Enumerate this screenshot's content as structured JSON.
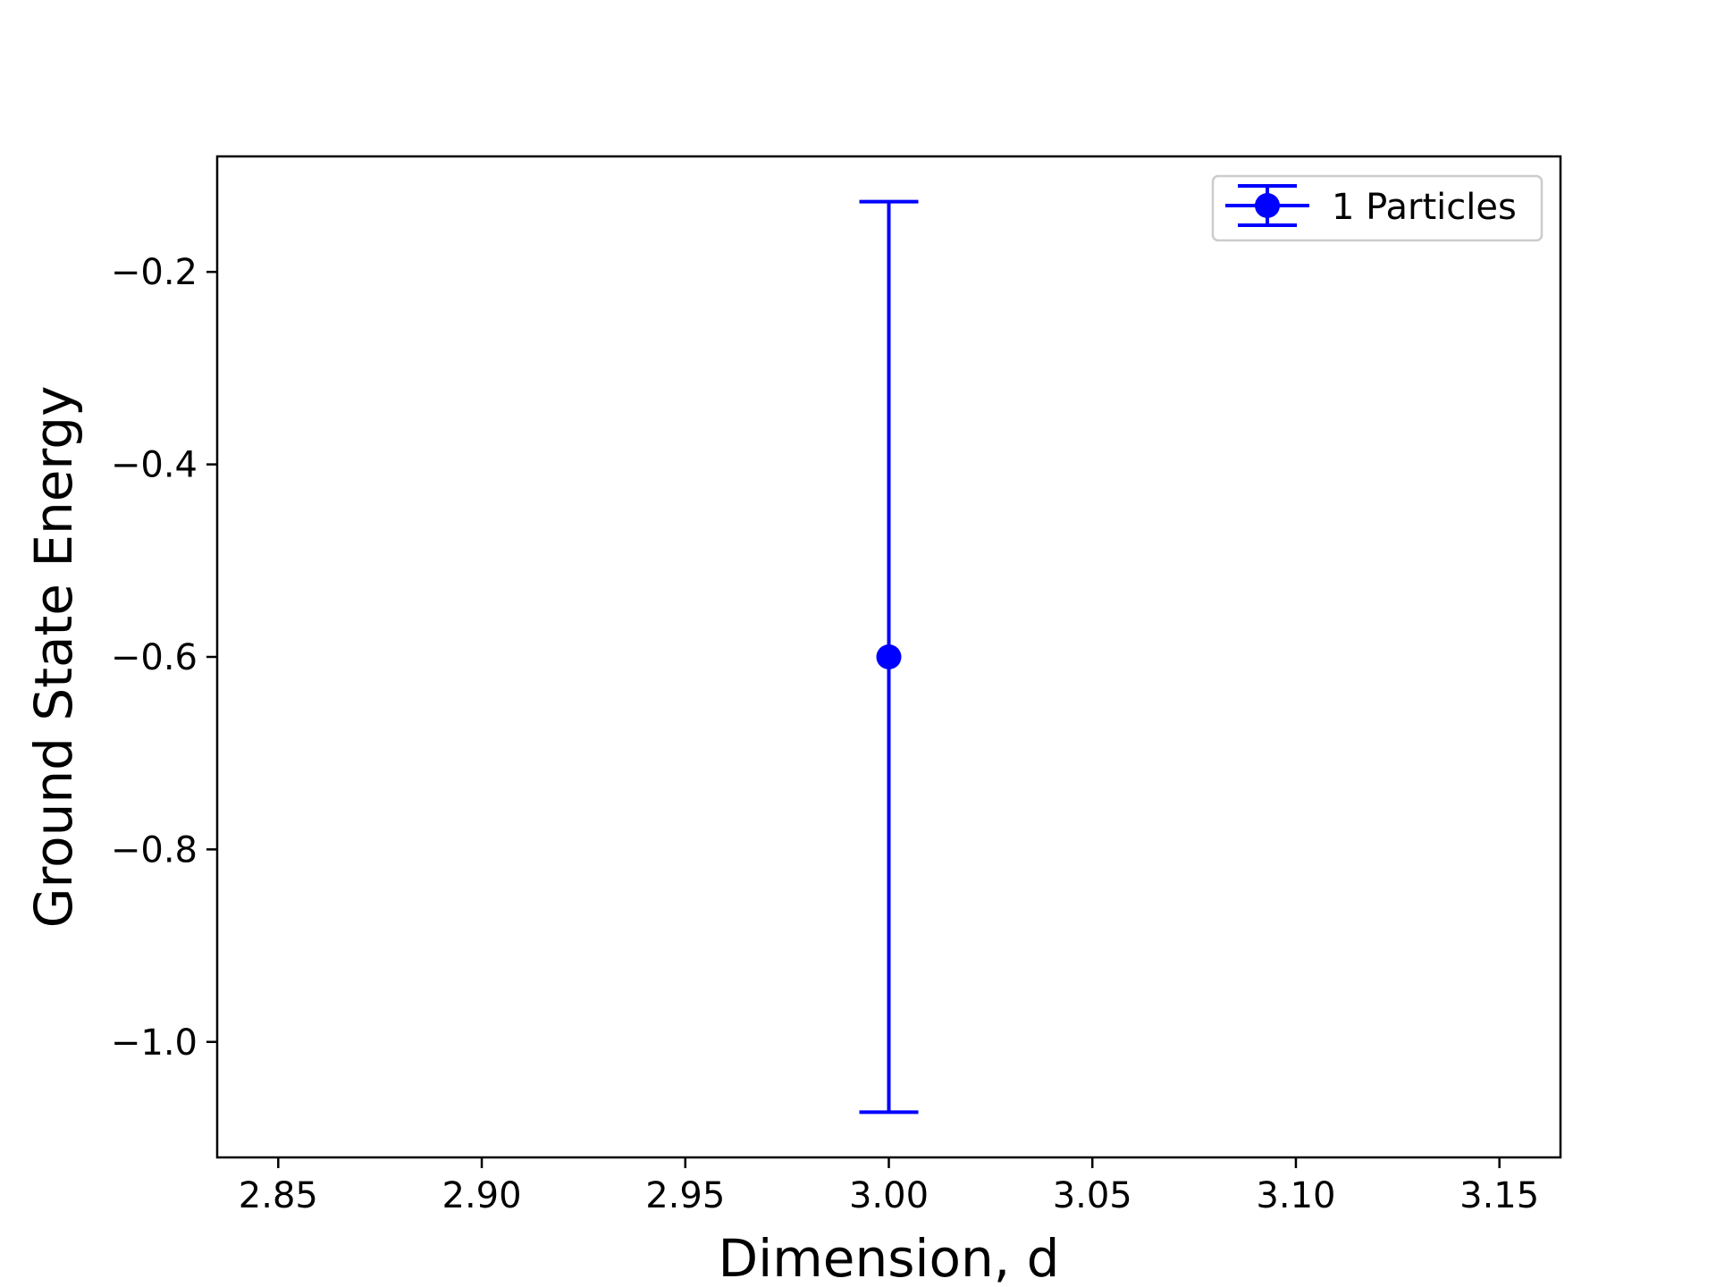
{
  "chart_data": {
    "type": "scatter",
    "title": "",
    "xlabel": "Dimension, d",
    "ylabel": "Ground State Energy",
    "xlim": [
      2.835,
      3.165
    ],
    "ylim": [
      -1.12,
      -0.08
    ],
    "x_ticks": [
      2.85,
      2.9,
      2.95,
      3.0,
      3.05,
      3.1,
      3.15
    ],
    "x_tick_labels": [
      "2.85",
      "2.90",
      "2.95",
      "3.00",
      "3.05",
      "3.10",
      "3.15"
    ],
    "y_ticks": [
      -1.0,
      -0.8,
      -0.6,
      -0.4,
      -0.2
    ],
    "y_tick_labels": [
      "−1.0",
      "−0.8",
      "−0.6",
      "−0.4",
      "−0.2"
    ],
    "grid": false,
    "legend_position": "top-right",
    "series": [
      {
        "name": "1 Particles",
        "color": "#0000ff",
        "marker": "circle",
        "points": [
          {
            "x": 3.0,
            "y": -0.6,
            "yerr": 0.473
          }
        ]
      }
    ]
  }
}
